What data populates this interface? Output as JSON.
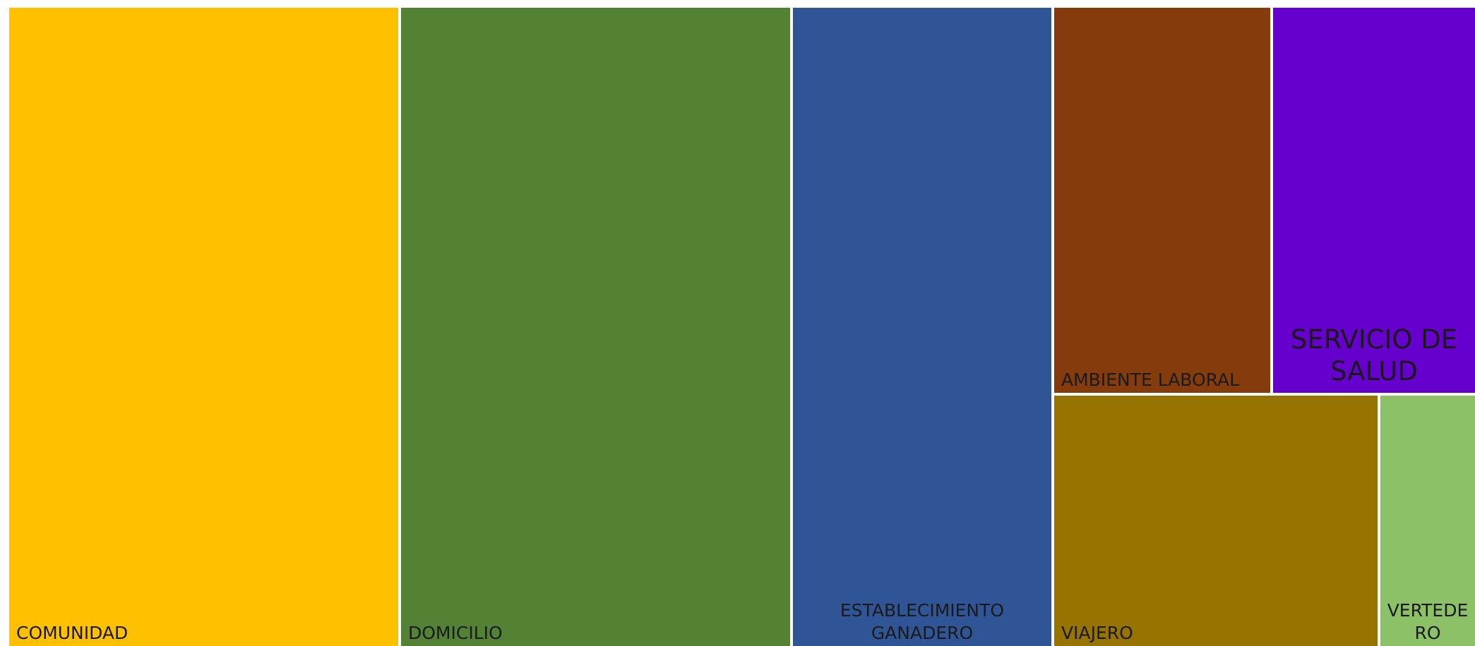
{
  "chart_data": {
    "type": "treemap",
    "items": [
      {
        "label": "COMUNIDAD",
        "color": "#FFC000"
      },
      {
        "label": "DOMICILIO",
        "color": "#548235"
      },
      {
        "label": "ESTABLECIMIENTO\nGANADERO",
        "color": "#2F5597"
      },
      {
        "label": "AMBIENTE LABORAL",
        "color": "#843C0C"
      },
      {
        "label": "SERVICIO DE\nSALUD",
        "color": "#6600CC"
      },
      {
        "label": "VIAJERO",
        "color": "#977300"
      },
      {
        "label": "VERTEDE\nRO",
        "color": "#8CC168"
      }
    ]
  }
}
